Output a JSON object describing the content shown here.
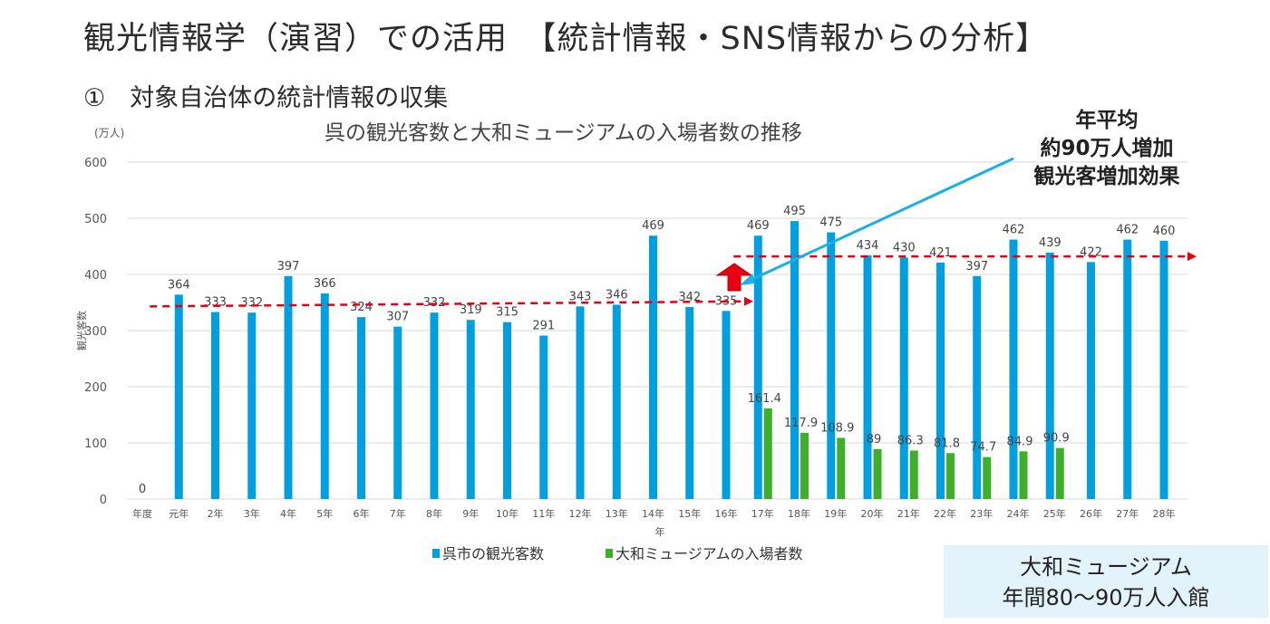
{
  "header": {
    "title": "観光情報学（演習）での活用　【統計情報・SNS情報からの分析】",
    "subtitle": "①　対象自治体の統計情報の収集"
  },
  "annotation": {
    "line1": "年平均",
    "line2": "約90万人増加",
    "line3": "観光客増加効果"
  },
  "callout_box": {
    "line1": "大和ミュージアム",
    "line2": "年間80～90万人入館"
  },
  "colors": {
    "visitors": "#00a0e0",
    "museum": "#3fae2a",
    "trend": "#e60012",
    "arrow_up": "#e60012",
    "pointer": "#19b0e6"
  },
  "chart_data": {
    "type": "bar",
    "title": "呉の観光客数と大和ミュージアムの入場者数の推移",
    "unit_label": "(万人)",
    "ylabel": "観光客数",
    "xlabel": "年",
    "ylim": [
      0,
      600
    ],
    "yticks": [
      0,
      100,
      200,
      300,
      400,
      500,
      600
    ],
    "grid": true,
    "legend_position": "bottom",
    "categories": [
      "年度",
      "元年",
      "2年",
      "3年",
      "4年",
      "5年",
      "6年",
      "7年",
      "8年",
      "9年",
      "10年",
      "11年",
      "12年",
      "13年",
      "14年",
      "15年",
      "16年",
      "17年",
      "18年",
      "19年",
      "20年",
      "21年",
      "22年",
      "23年",
      "24年",
      "25年",
      "26年",
      "27年",
      "28年"
    ],
    "series": [
      {
        "name": "呉市の観光客数",
        "values": [
          0,
          364,
          333,
          332,
          397,
          366,
          324,
          307,
          332,
          319,
          315,
          291,
          343,
          346,
          469,
          342,
          335,
          469,
          495,
          475,
          434,
          430,
          421,
          397,
          462,
          439,
          422,
          462,
          460
        ],
        "labels": [
          "0",
          "364",
          "333",
          "332",
          "397",
          "366",
          "324",
          "307",
          "332",
          "319",
          "315",
          "291",
          "343",
          "346",
          "469",
          "342",
          "335",
          "469",
          "495",
          "475",
          "434",
          "430",
          "421",
          "397",
          "462",
          "439",
          "422",
          "462",
          "460"
        ]
      },
      {
        "name": "大和ミュージアムの入場者数",
        "values": [
          null,
          null,
          null,
          null,
          null,
          null,
          null,
          null,
          null,
          null,
          null,
          null,
          null,
          null,
          null,
          null,
          null,
          161.4,
          117.9,
          108.9,
          89,
          86.3,
          81.8,
          74.7,
          84.9,
          90.9,
          null,
          null,
          null
        ],
        "labels": [
          "",
          "",
          "",
          "",
          "",
          "",
          "",
          "",
          "",
          "",
          "",
          "",
          "",
          "",
          "",
          "",
          "",
          "161.4",
          "117.9",
          "108.9",
          "89",
          "86.3",
          "81.8",
          "74.7",
          "84.9",
          "90.9",
          "",
          "",
          ""
        ]
      }
    ],
    "trend_lines": [
      {
        "from": "元年",
        "to": "16年",
        "y_start": 343,
        "y_end": 352
      },
      {
        "from": "17年",
        "to": "28年",
        "y_start": 432,
        "y_end": 432
      }
    ]
  }
}
